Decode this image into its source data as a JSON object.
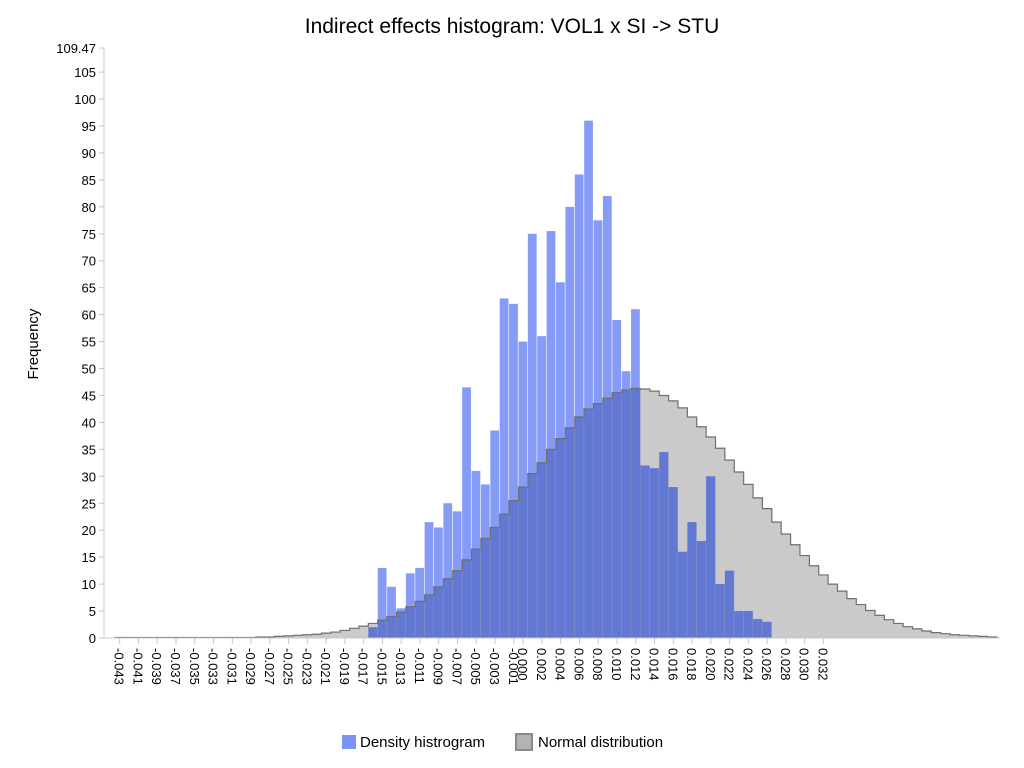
{
  "chart_data": {
    "type": "bar",
    "title": "Indirect effects histogram: VOL1 x SI -> STU",
    "ylabel": "Frequency",
    "xlabel": "",
    "ylim": [
      0,
      109.47
    ],
    "y_ticks": [
      "0",
      "5",
      "10",
      "15",
      "20",
      "25",
      "30",
      "35",
      "40",
      "45",
      "50",
      "55",
      "60",
      "65",
      "70",
      "75",
      "80",
      "85",
      "90",
      "95",
      "100",
      "105",
      "109.47"
    ],
    "x_tick_labels": [
      "-0.043",
      "-0.041",
      "-0.039",
      "-0.037",
      "-0.035",
      "-0.033",
      "-0.031",
      "-0.029",
      "-0.027",
      "-0.025",
      "-0.023",
      "-0.021",
      "-0.019",
      "-0.017",
      "-0.015",
      "-0.013",
      "-0.011",
      "-0.009",
      "-0.007",
      "-0.005",
      "-0.003",
      "-0.001",
      "0.000",
      "0.002",
      "0.004",
      "0.006",
      "0.008",
      "0.010",
      "0.012",
      "0.014",
      "0.016",
      "0.018",
      "0.020",
      "0.022",
      "0.024",
      "0.026",
      "0.028",
      "0.030",
      "0.032"
    ],
    "bin_start": -0.0435,
    "bin_width": 0.001,
    "legend_position": "bottom-center",
    "grid": false,
    "series": [
      {
        "name": "Density histrogram",
        "color": "#7b93f5",
        "first_bin_start": -0.0165,
        "values": [
          2,
          13,
          9.5,
          5.5,
          12,
          13,
          21.5,
          20.5,
          25,
          23.5,
          46.5,
          31,
          28.5,
          38.5,
          63,
          62,
          55,
          75,
          56,
          75.5,
          66,
          80,
          86,
          96,
          77.5,
          82,
          59,
          49.5,
          61,
          32,
          31.5,
          34.5,
          28,
          16,
          21.5,
          18,
          30,
          10,
          12.5,
          5,
          5,
          3.5,
          3
        ]
      },
      {
        "name": "Normal distribution",
        "color": "#b3b3b3",
        "first_bin_start": -0.0435,
        "values": [
          0.1,
          0.1,
          0.1,
          0.1,
          0.1,
          0.1,
          0.1,
          0.1,
          0.1,
          0.1,
          0.1,
          0.1,
          0.1,
          0.1,
          0.1,
          0.2,
          0.2,
          0.3,
          0.4,
          0.5,
          0.6,
          0.7,
          0.9,
          1.1,
          1.4,
          1.8,
          2.2,
          2.7,
          3.3,
          4,
          4.8,
          5.8,
          6.8,
          8,
          9.5,
          11,
          12.5,
          14.5,
          16.5,
          18.5,
          20.5,
          23,
          25.5,
          28,
          30.5,
          32.5,
          35,
          37,
          39,
          41,
          42.5,
          43.5,
          44.5,
          45.5,
          46,
          46.3,
          46.2,
          45.8,
          45,
          44,
          42.7,
          41,
          39.2,
          37.3,
          35.2,
          33,
          30.8,
          28.5,
          26,
          24,
          21.5,
          19.3,
          17.3,
          15.3,
          13.4,
          11.7,
          10,
          8.7,
          7.3,
          6.2,
          5.1,
          4.2,
          3.4,
          2.7,
          2.1,
          1.7,
          1.3,
          1,
          0.8,
          0.6,
          0.5,
          0.4,
          0.3,
          0.2
        ]
      }
    ]
  }
}
